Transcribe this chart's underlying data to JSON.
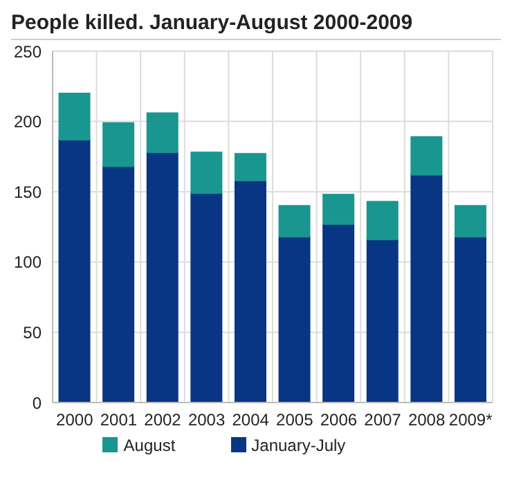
{
  "chart_data": {
    "type": "bar",
    "title": "People killed. January-August 2000-2009",
    "categories": [
      "2000",
      "2001",
      "2002",
      "2003",
      "2004",
      "2005",
      "2006",
      "2007",
      "2008",
      "2009*"
    ],
    "stacked": true,
    "series": [
      {
        "name": "January-July",
        "color": "#083685",
        "values": [
          187,
          168,
          178,
          149,
          158,
          118,
          127,
          116,
          162,
          118
        ]
      },
      {
        "name": "August",
        "color": "#199690",
        "values": [
          33,
          31,
          28,
          29,
          19,
          22,
          21,
          27,
          27,
          22
        ]
      }
    ],
    "ylim": [
      0,
      250
    ],
    "yticks": [
      0,
      50,
      100,
      150,
      200,
      250
    ],
    "grid": true,
    "legend": "bottom"
  }
}
